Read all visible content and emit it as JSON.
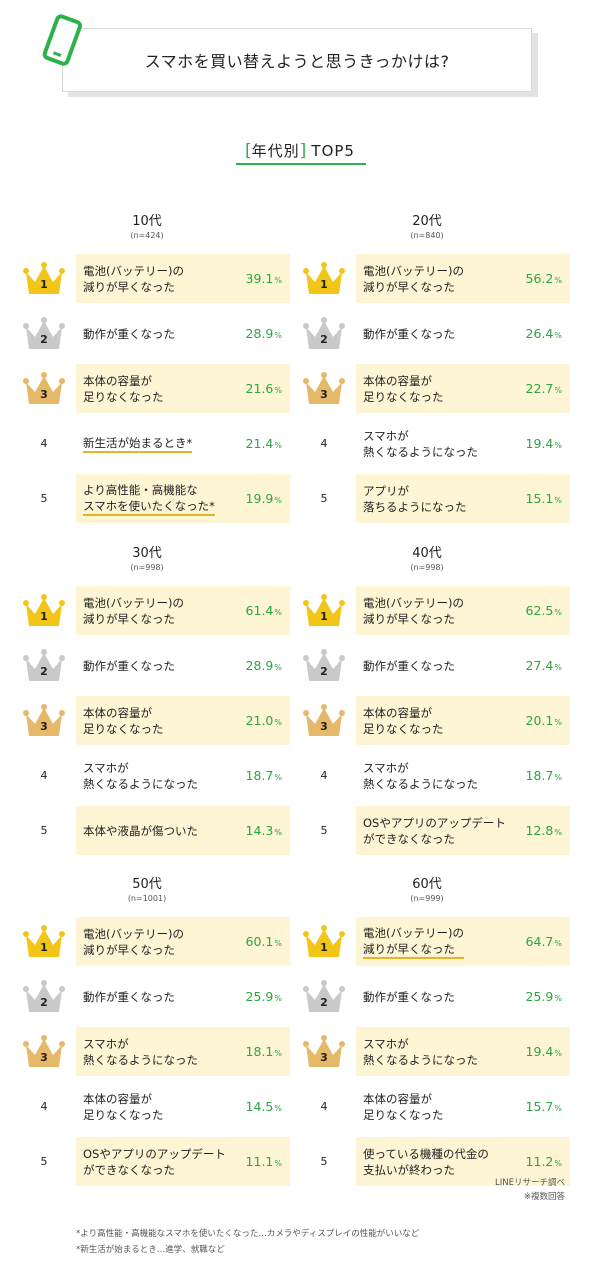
{
  "header": {
    "title": "スマホを買い替えようと思うきっかけは?"
  },
  "section": {
    "open": "[",
    "title": "年代別",
    "close": "]",
    "suffix": "TOP5"
  },
  "colors": {
    "accent": "#2db24a",
    "highlight": "#fdf5d3",
    "gold": "#f1c619",
    "silver": "#c9c9c9",
    "bronze": "#e6b86a",
    "percent": "#2aa83f"
  },
  "groups": [
    {
      "age": "10代",
      "n": "(n=424)",
      "items": [
        {
          "rank": "1",
          "label": "電池(バッテリー)の\n減りが早くなった",
          "value": "39.1",
          "unit": "%"
        },
        {
          "rank": "2",
          "label": "動作が重くなった",
          "value": "28.9",
          "unit": "%"
        },
        {
          "rank": "3",
          "label": "本体の容量が\n足りなくなった",
          "value": "21.6",
          "unit": "%"
        },
        {
          "rank": "4",
          "label": "新生活が始まるとき*",
          "value": "21.4",
          "unit": "%"
        },
        {
          "rank": "5",
          "label": "より高性能・高機能な\nスマホを使いたくなった*",
          "value": "19.9",
          "unit": "%"
        }
      ]
    },
    {
      "age": "20代",
      "n": "(n=840)",
      "items": [
        {
          "rank": "1",
          "label": "電池(バッテリー)の\n減りが早くなった",
          "value": "56.2",
          "unit": "%"
        },
        {
          "rank": "2",
          "label": "動作が重くなった",
          "value": "26.4",
          "unit": "%"
        },
        {
          "rank": "3",
          "label": "本体の容量が\n足りなくなった",
          "value": "22.7",
          "unit": "%"
        },
        {
          "rank": "4",
          "label": "スマホが\n熱くなるようになった",
          "value": "19.4",
          "unit": "%"
        },
        {
          "rank": "5",
          "label": "アプリが\n落ちるようになった",
          "value": "15.1",
          "unit": "%"
        }
      ]
    },
    {
      "age": "30代",
      "n": "(n=998)",
      "items": [
        {
          "rank": "1",
          "label": "電池(バッテリー)の\n減りが早くなった",
          "value": "61.4",
          "unit": "%"
        },
        {
          "rank": "2",
          "label": "動作が重くなった",
          "value": "28.9",
          "unit": "%"
        },
        {
          "rank": "3",
          "label": "本体の容量が\n足りなくなった",
          "value": "21.0",
          "unit": "%"
        },
        {
          "rank": "4",
          "label": "スマホが\n熱くなるようになった",
          "value": "18.7",
          "unit": "%"
        },
        {
          "rank": "5",
          "label": "本体や液晶が傷ついた",
          "value": "14.3",
          "unit": "%"
        }
      ]
    },
    {
      "age": "40代",
      "n": "(n=998)",
      "items": [
        {
          "rank": "1",
          "label": "電池(バッテリー)の\n減りが早くなった",
          "value": "62.5",
          "unit": "%"
        },
        {
          "rank": "2",
          "label": "動作が重くなった",
          "value": "27.4",
          "unit": "%"
        },
        {
          "rank": "3",
          "label": "本体の容量が\n足りなくなった",
          "value": "20.1",
          "unit": "%"
        },
        {
          "rank": "4",
          "label": "スマホが\n熱くなるようになった",
          "value": "18.7",
          "unit": "%"
        },
        {
          "rank": "5",
          "label": "OSやアプリのアップデート\nができなくなった",
          "value": "12.8",
          "unit": "%"
        }
      ]
    },
    {
      "age": "50代",
      "n": "(n=1001)",
      "items": [
        {
          "rank": "1",
          "label": "電池(バッテリー)の\n減りが早くなった",
          "value": "60.1",
          "unit": "%"
        },
        {
          "rank": "2",
          "label": "動作が重くなった",
          "value": "25.9",
          "unit": "%"
        },
        {
          "rank": "3",
          "label": "スマホが\n熱くなるようになった",
          "value": "18.1",
          "unit": "%"
        },
        {
          "rank": "4",
          "label": "本体の容量が\n足りなくなった",
          "value": "14.5",
          "unit": "%"
        },
        {
          "rank": "5",
          "label": "OSやアプリのアップデート\nができなくなった",
          "value": "11.1",
          "unit": "%"
        }
      ]
    },
    {
      "age": "60代",
      "n": "(n=999)",
      "items": [
        {
          "rank": "1",
          "label": "電池(バッテリー)の\n減りが早くなった",
          "value": "64.7",
          "unit": "%"
        },
        {
          "rank": "2",
          "label": "動作が重くなった",
          "value": "25.9",
          "unit": "%"
        },
        {
          "rank": "3",
          "label": "スマホが\n熱くなるようになった",
          "value": "19.4",
          "unit": "%"
        },
        {
          "rank": "4",
          "label": "本体の容量が\n足りなくなった",
          "value": "15.7",
          "unit": "%"
        },
        {
          "rank": "5",
          "label": "使っている機種の代金の\n支払いが終わった",
          "value": "11.2",
          "unit": "%"
        }
      ]
    }
  ],
  "source": {
    "line1": "LINEリサーチ調べ",
    "line2": "※複数回答"
  },
  "notes": [
    "*より高性能・高機能なスマホを使いたくなった…カメラやディスプレイの性能がいいなど",
    "*新生活が始まるとき…進学、就職など"
  ]
}
